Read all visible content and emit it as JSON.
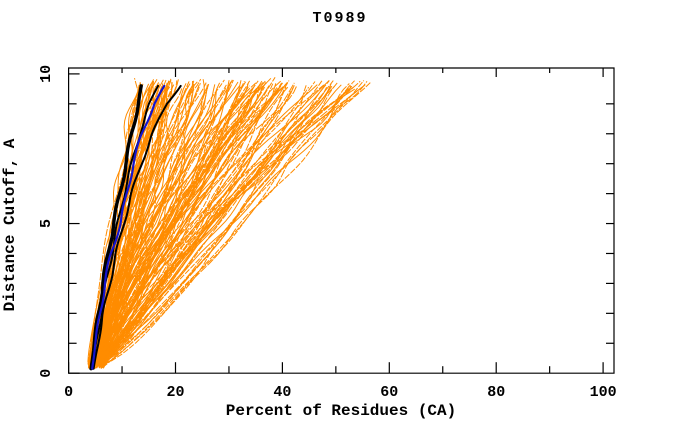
{
  "title": "T0989",
  "axes": {
    "x": {
      "label": "Percent of Residues (CA)",
      "min": 0,
      "max": 100,
      "labeled_ticks": [
        0,
        20,
        40,
        60,
        80,
        100
      ],
      "minor_tick_step": 10
    },
    "y": {
      "label": "Distance Cutoff, A",
      "min": 0,
      "max": 10,
      "labeled_ticks": [
        0,
        5,
        10
      ],
      "minor_tick_step": 1
    }
  },
  "colors": {
    "background": "#ffffff",
    "frame": "#000000",
    "ensemble_orange": "#ff8c00",
    "highlight_black": "#000000",
    "highlight_blue": "#1414cd",
    "text": "#000000"
  },
  "chart_data": {
    "type": "line",
    "title": "T0989",
    "xlabel": "Percent of Residues (CA)",
    "ylabel": "Distance Cutoff, A",
    "xlim": [
      0,
      102
    ],
    "ylim": [
      0,
      10.2
    ],
    "grid": false,
    "legend": "none",
    "cutoff_range": [
      0.15,
      9.8
    ],
    "series": [
      {
        "name": "highlight-black-1",
        "color": "#000000",
        "width": 3.4,
        "points": [
          [
            4.2,
            0.15
          ],
          [
            4.8,
            1
          ],
          [
            5.6,
            2
          ],
          [
            6.4,
            3
          ],
          [
            7.4,
            4
          ],
          [
            8.4,
            5
          ],
          [
            9.6,
            6
          ],
          [
            10.7,
            7
          ],
          [
            11.8,
            8
          ],
          [
            13.0,
            9
          ],
          [
            13.9,
            9.7
          ]
        ]
      },
      {
        "name": "highlight-black-2",
        "color": "#000000",
        "width": 2.0,
        "points": [
          [
            4.5,
            0.15
          ],
          [
            5.2,
            1
          ],
          [
            6.1,
            2
          ],
          [
            7.0,
            3
          ],
          [
            8.1,
            4
          ],
          [
            9.2,
            5
          ],
          [
            10.4,
            6
          ],
          [
            11.8,
            7
          ],
          [
            13.3,
            8
          ],
          [
            15.2,
            9
          ],
          [
            16.9,
            9.7
          ]
        ]
      },
      {
        "name": "highlight-black-3",
        "color": "#000000",
        "width": 2.0,
        "points": [
          [
            4.7,
            0.15
          ],
          [
            5.5,
            1
          ],
          [
            6.5,
            2
          ],
          [
            7.7,
            3
          ],
          [
            8.9,
            4
          ],
          [
            10.3,
            5
          ],
          [
            11.8,
            6
          ],
          [
            13.6,
            7
          ],
          [
            15.7,
            8
          ],
          [
            18.3,
            9
          ],
          [
            21.3,
            9.7
          ]
        ]
      },
      {
        "name": "highlight-blue",
        "color": "#1414cd",
        "width": 2.2,
        "points": [
          [
            4.4,
            0.15
          ],
          [
            5.0,
            1
          ],
          [
            5.9,
            2
          ],
          [
            6.8,
            3
          ],
          [
            7.9,
            4
          ],
          [
            9.7,
            5
          ],
          [
            10.9,
            6
          ],
          [
            12.1,
            7
          ],
          [
            13.7,
            8
          ],
          [
            16.0,
            9
          ],
          [
            18.4,
            9.7
          ]
        ]
      }
    ],
    "ensemble": {
      "name": "orange-model-curves",
      "color": "#ff8c00",
      "count": 150,
      "start_percent_range": [
        3.6,
        6.8
      ],
      "top_percent_range": [
        12.5,
        57
      ],
      "shape_exponent_range": [
        0.62,
        1.5
      ],
      "seed": 42
    }
  }
}
